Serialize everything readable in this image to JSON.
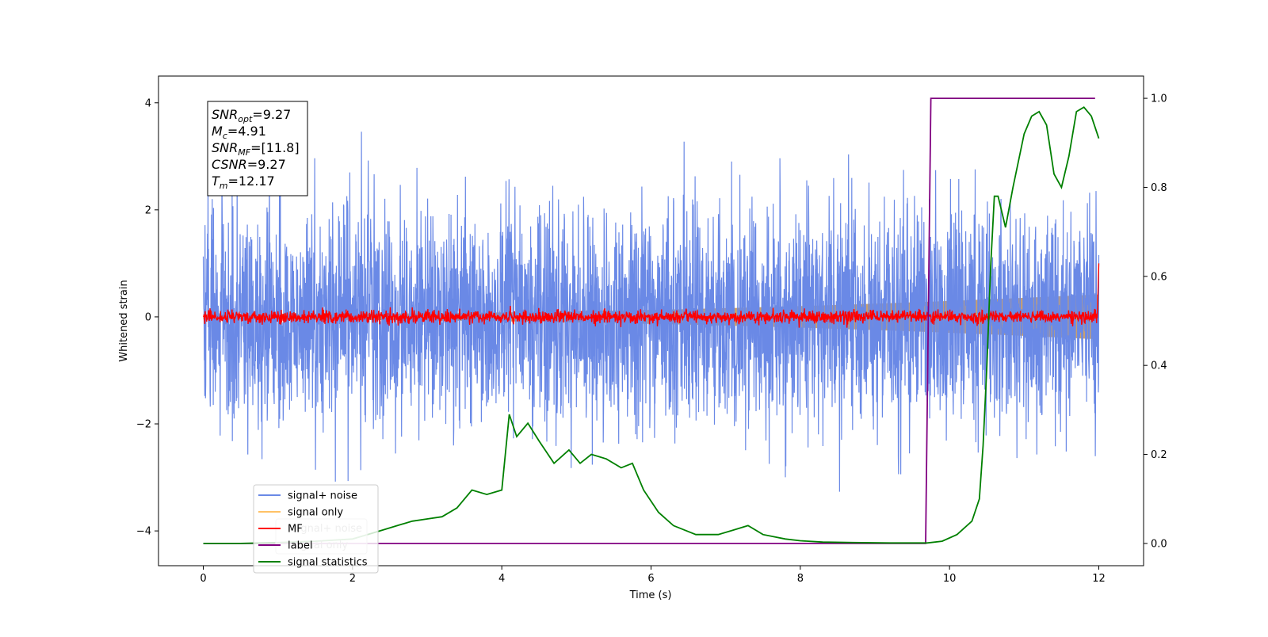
{
  "chart_data": {
    "type": "line",
    "xlabel": "Time (s)",
    "ylabel": "Whitened strain",
    "xlim": [
      -0.6,
      12.6
    ],
    "ylim": [
      -4.65,
      4.5
    ],
    "y2lim": [
      -0.05,
      1.05
    ],
    "xticks": [
      0,
      2,
      4,
      6,
      8,
      10,
      12
    ],
    "yticks": [
      -4,
      -2,
      0,
      2,
      4
    ],
    "y2ticks": [
      0.0,
      0.2,
      0.4,
      0.6,
      0.8,
      1.0
    ],
    "grid": false,
    "legend_placement": "lower-left",
    "annotation_lines": [
      {
        "main": "SNR",
        "sub": "opt",
        "value": "=9.27"
      },
      {
        "main": "M",
        "sub": "c",
        "value": "=4.91"
      },
      {
        "main": "SNR",
        "sub": "MF",
        "value": "=[11.8]"
      },
      {
        "main": "CSNR",
        "sub": "",
        "value": "=9.27"
      },
      {
        "main": "T",
        "sub": "m",
        "value": "=12.17"
      }
    ],
    "legend_entries": [
      {
        "name": "signal+ noise",
        "color": "#6a89e6"
      },
      {
        "name": "signal only",
        "color": "#ffc266"
      },
      {
        "name": "MF",
        "color": "#ff0000"
      },
      {
        "name": "label",
        "color": "#800080"
      },
      {
        "name": "signal statistics",
        "color": "#008000"
      }
    ],
    "ghost_legend_entries": [
      "signal+ noise",
      "signal only"
    ],
    "series": [
      {
        "name": "signal+ noise",
        "color": "#6a89e6",
        "axis": "left",
        "x_start": 0,
        "x_end": 12,
        "amplitude": 1.0
      },
      {
        "name": "signal only",
        "color": "#c8a070",
        "axis": "left",
        "x_start": 0,
        "x_end": 12,
        "envelope_start": 0.05,
        "envelope_end": 0.42
      },
      {
        "name": "MF",
        "color": "#ff0000",
        "axis": "left",
        "x_start": 0,
        "x_end": 12,
        "final_peak": 1.0
      },
      {
        "name": "label",
        "color": "#800080",
        "axis": "right",
        "x": [
          0,
          9.68,
          9.75,
          11.95
        ],
        "y": [
          0.0,
          0.0,
          1.0,
          1.0
        ]
      },
      {
        "name": "signal statistics",
        "color": "#008000",
        "axis": "right",
        "x": [
          0,
          0.5,
          1.0,
          1.5,
          2.0,
          2.2,
          2.4,
          2.6,
          2.8,
          3.0,
          3.2,
          3.4,
          3.6,
          3.8,
          4.0,
          4.1,
          4.2,
          4.35,
          4.5,
          4.7,
          4.9,
          5.05,
          5.2,
          5.4,
          5.6,
          5.75,
          5.9,
          6.1,
          6.3,
          6.6,
          6.9,
          7.1,
          7.3,
          7.5,
          7.8,
          8.0,
          8.3,
          8.7,
          9.2,
          9.7,
          9.9,
          10.1,
          10.3,
          10.4,
          10.45,
          10.5,
          10.55,
          10.6,
          10.65,
          10.75,
          10.85,
          11.0,
          11.1,
          11.2,
          11.3,
          11.4,
          11.5,
          11.6,
          11.7,
          11.8,
          11.9,
          12.0
        ],
        "y": [
          0.0,
          0.0,
          0.002,
          0.005,
          0.01,
          0.02,
          0.03,
          0.04,
          0.05,
          0.055,
          0.06,
          0.08,
          0.12,
          0.11,
          0.12,
          0.29,
          0.24,
          0.27,
          0.23,
          0.18,
          0.21,
          0.18,
          0.2,
          0.19,
          0.17,
          0.18,
          0.12,
          0.07,
          0.04,
          0.02,
          0.02,
          0.03,
          0.04,
          0.02,
          0.01,
          0.006,
          0.003,
          0.002,
          0.001,
          0.001,
          0.005,
          0.02,
          0.05,
          0.1,
          0.22,
          0.4,
          0.62,
          0.78,
          0.78,
          0.71,
          0.8,
          0.92,
          0.96,
          0.97,
          0.94,
          0.83,
          0.8,
          0.87,
          0.97,
          0.98,
          0.96,
          0.91
        ]
      }
    ]
  }
}
